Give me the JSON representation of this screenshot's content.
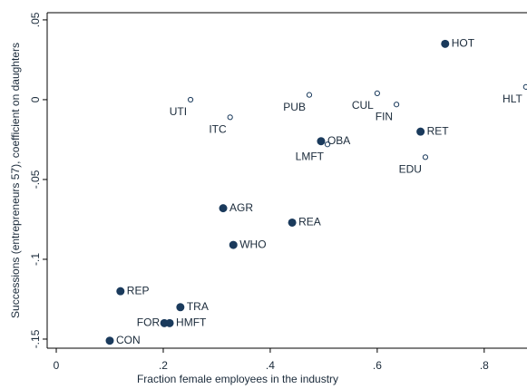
{
  "chart_data": {
    "type": "scatter",
    "x_label": "Fraction female employees in the industry",
    "y_label": "Successions (entrepreneurs 57), coefficient on daughters",
    "xlim": [
      -0.017,
      0.88
    ],
    "ylim": [
      -0.1557,
      0.0545
    ],
    "xticks": [
      0,
      {
        "value": 0.2,
        "label": ".2"
      },
      {
        "value": 0.4,
        "label": ".4"
      },
      {
        "value": 0.6,
        "label": ".6"
      },
      {
        "value": 0.8,
        "label": ".8"
      }
    ],
    "yticks": [
      {
        "value": 0.05,
        "label": ".05"
      },
      0,
      {
        "value": -0.05,
        "label": "-.05"
      },
      {
        "value": -0.1,
        "label": "-.1"
      },
      {
        "value": -0.15,
        "label": "-.15"
      }
    ],
    "grid": false,
    "series": [
      {
        "color": "#1a3a5c",
        "marker": "filled",
        "labels": [
          "HOT",
          "OBA",
          "RET",
          "AGR",
          "REA",
          "WHO",
          "REP",
          "TRA",
          "FOR",
          "HMFT",
          "CON"
        ],
        "x": [
          0.727,
          0.495,
          0.681,
          0.312,
          0.441,
          0.331,
          0.12,
          0.232,
          0.202,
          0.212,
          0.1
        ],
        "values": [
          0.035,
          -0.026,
          -0.02,
          -0.068,
          -0.077,
          -0.091,
          -0.12,
          -0.13,
          -0.14,
          -0.14,
          -0.151
        ]
      },
      {
        "color": "#1a3a5c",
        "marker": "hollow",
        "labels": [
          "HLT",
          "UTI",
          "ITC",
          "PUB",
          "CUL",
          "FIN",
          "LMFT",
          "EDU"
        ],
        "x": [
          0.878,
          0.251,
          0.325,
          0.473,
          0.6,
          0.636,
          0.507,
          0.69
        ],
        "values": [
          0.008,
          0,
          -0.011,
          0.003,
          0.004,
          -0.003,
          -0.028,
          -0.036
        ]
      }
    ]
  }
}
